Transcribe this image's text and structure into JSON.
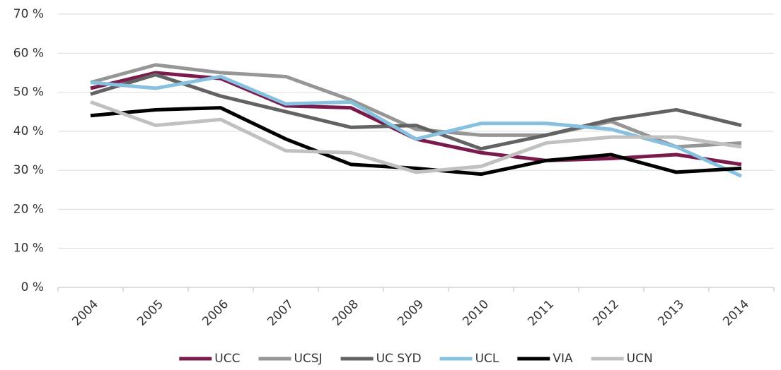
{
  "chart_data": {
    "type": "line",
    "categories": [
      "2004",
      "2005",
      "2006",
      "2007",
      "2008",
      "2009",
      "2010",
      "2011",
      "2012",
      "2013",
      "2014"
    ],
    "series": [
      {
        "name": "UCC",
        "color": "#7b1b4d",
        "values": [
          51,
          55,
          53.5,
          46.5,
          46,
          38,
          34.5,
          32.5,
          33,
          34,
          31.5
        ]
      },
      {
        "name": "UCSJ",
        "color": "#969696",
        "values": [
          52.5,
          57,
          55,
          54,
          48,
          40.5,
          39,
          39,
          42.5,
          36,
          37
        ]
      },
      {
        "name": "UC SYD",
        "color": "#636363",
        "values": [
          49.5,
          54.5,
          49,
          45,
          41,
          41.5,
          35.5,
          39,
          43,
          45.5,
          41.5
        ]
      },
      {
        "name": "UCL",
        "color": "#87c1e0",
        "values": [
          52.5,
          51,
          54,
          47,
          47.5,
          38,
          42,
          42,
          40.5,
          36,
          28.5
        ]
      },
      {
        "name": "VIA",
        "color": "#000000",
        "values": [
          44,
          45.5,
          46,
          38,
          31.5,
          30.5,
          29,
          32.5,
          34,
          29.5,
          30.5
        ]
      },
      {
        "name": "UCN",
        "color": "#c0c0c0",
        "values": [
          47.5,
          41.5,
          43,
          35,
          34.5,
          29.5,
          31,
          37,
          38.5,
          38.5,
          36
        ]
      }
    ],
    "ylim": [
      0,
      70
    ],
    "yticks": [
      {
        "value": 0,
        "label": "0 %"
      },
      {
        "value": 10,
        "label": "10 %"
      },
      {
        "value": 20,
        "label": "20 %"
      },
      {
        "value": 30,
        "label": "30 %"
      },
      {
        "value": 40,
        "label": "40 %"
      },
      {
        "value": 50,
        "label": "50 %"
      },
      {
        "value": 60,
        "label": "60 %"
      },
      {
        "value": 70,
        "label": "70 %"
      }
    ],
    "grid": true,
    "legend": "bottom"
  }
}
